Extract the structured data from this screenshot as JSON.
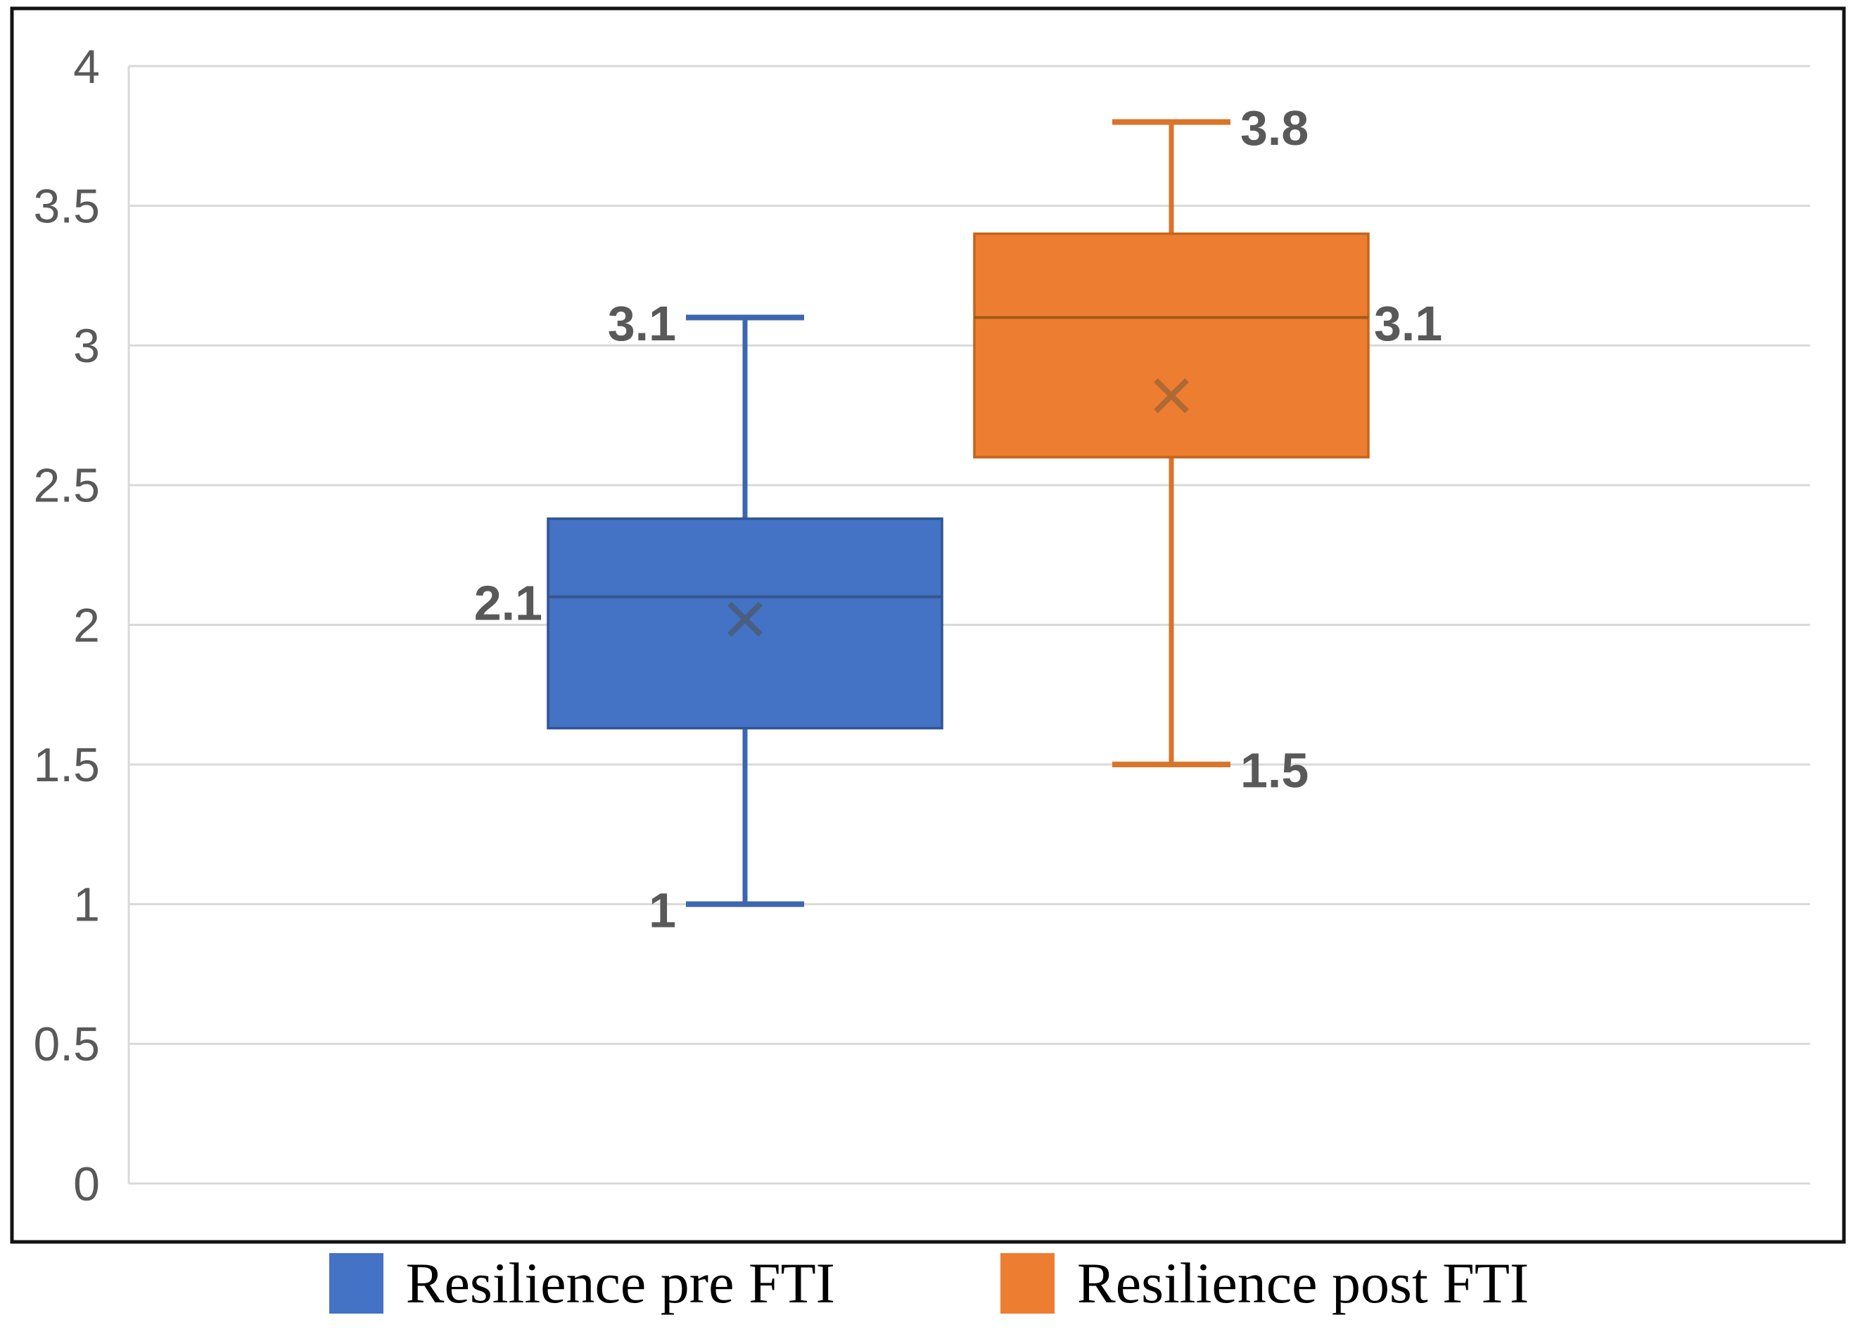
{
  "chart_data": {
    "type": "boxplot",
    "title": "",
    "xlabel": "",
    "ylabel": "",
    "grid": "horizontal",
    "y_axis": {
      "min": 0,
      "max": 4,
      "step": 0.5,
      "tick_labels": [
        "0",
        "0.5",
        "1",
        "1.5",
        "2",
        "2.5",
        "3",
        "3.5",
        "4"
      ]
    },
    "series": [
      {
        "name": "Resilience pre FTI",
        "min": 1,
        "q1": 1.63,
        "median": 2.1,
        "mean": 2.02,
        "q3": 2.38,
        "max": 3.1,
        "point_labels": {
          "max": "3.1",
          "median": "2.1",
          "min": "1"
        },
        "label_side": "left",
        "fill": "#4472C4",
        "edge": "#2E5596",
        "whisker_color": "#3E66B0",
        "median_color": "#35568C",
        "mean_color": "#4A5E80"
      },
      {
        "name": "Resilience post FTI",
        "min": 1.5,
        "q1": 2.6,
        "median": 3.1,
        "mean": 2.82,
        "q3": 3.4,
        "max": 3.8,
        "point_labels": {
          "max": "3.8",
          "median": "3.1",
          "min": "1.5"
        },
        "label_side": "right",
        "fill": "#ED7D31",
        "edge": "#C4651C",
        "whisker_color": "#D97428",
        "median_color": "#9E5A1E",
        "mean_color": "#AE6A35"
      }
    ],
    "legend": {
      "position": "bottom",
      "entries": [
        {
          "label": "Resilience pre FTI",
          "color": "#4472C4"
        },
        {
          "label": "Resilience post FTI",
          "color": "#ED7D31"
        }
      ]
    },
    "colors": {
      "tick_label": "#595959",
      "data_label": "#595959",
      "gridline": "#D9D9D9",
      "frame_border": "#131313"
    }
  }
}
